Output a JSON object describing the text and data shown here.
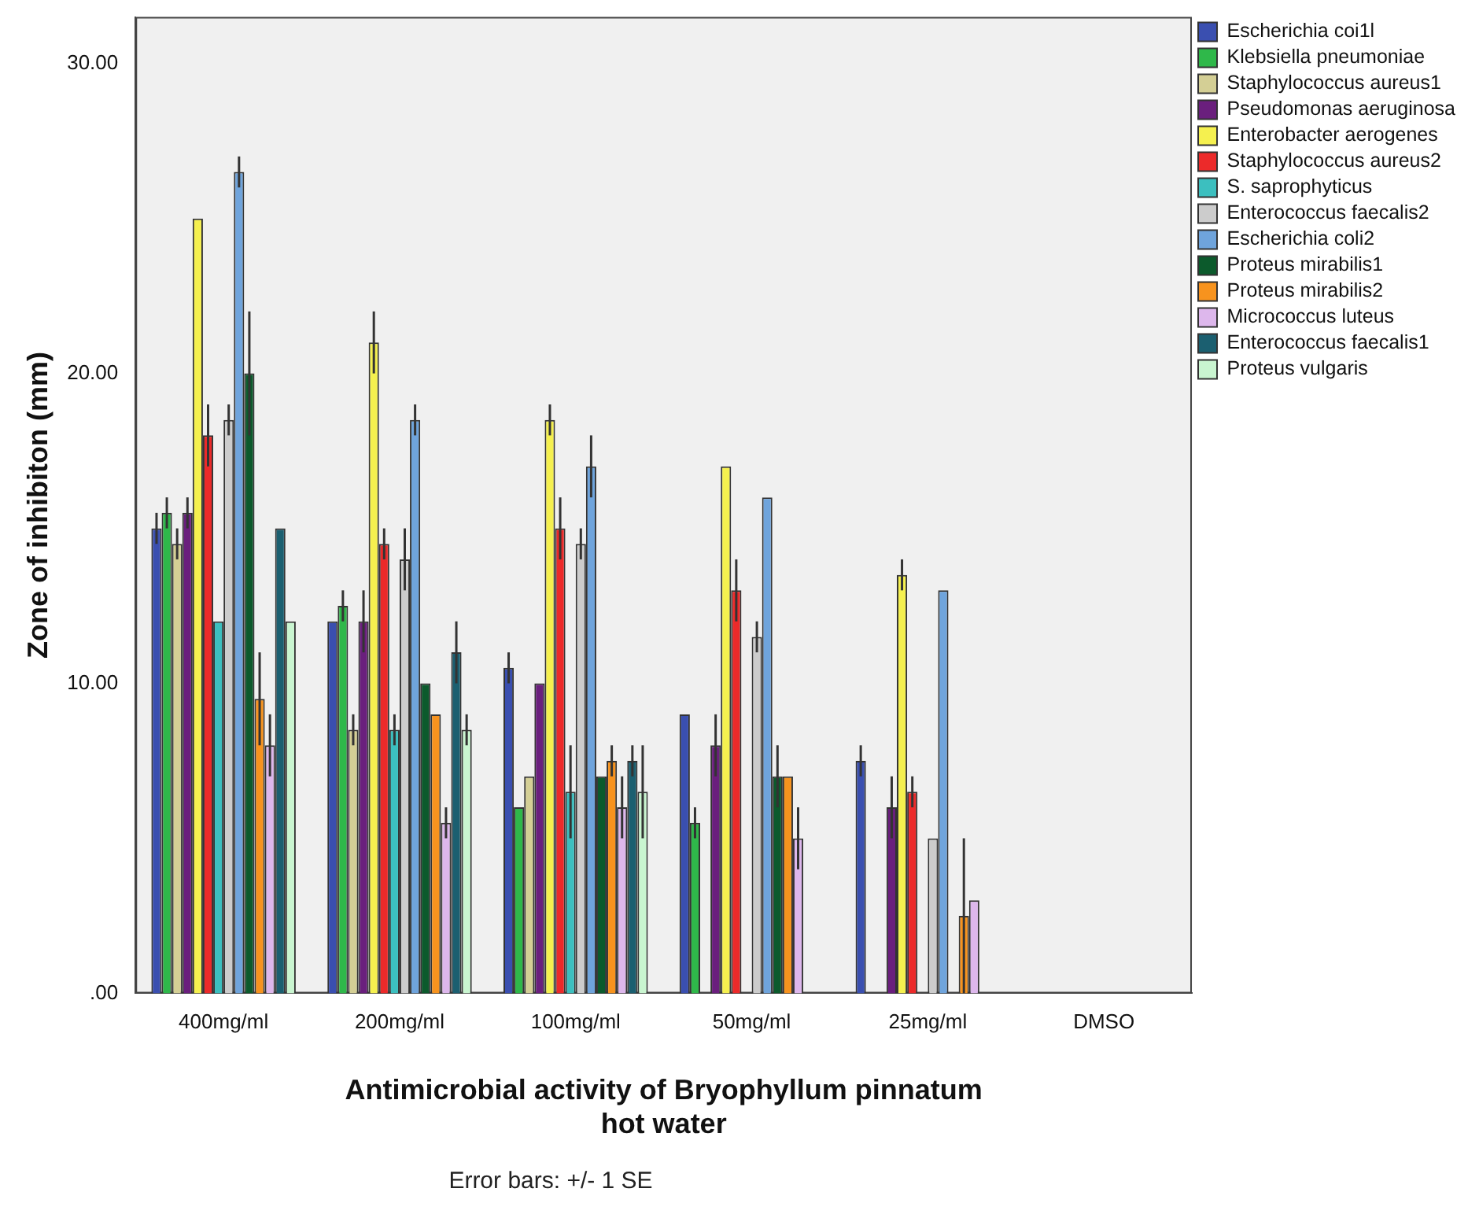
{
  "chart_data": {
    "type": "bar",
    "xlabel": "Antimicrobial activity of Bryophyllum pinnatum\nhot water",
    "ylabel": "Zone of inhibiton (mm)",
    "categories": [
      "400mg/ml",
      "200mg/ml",
      "100mg/ml",
      "50mg/ml",
      "25mg/ml",
      "DMSO"
    ],
    "ylim": [
      0,
      31.5
    ],
    "yticks": [
      {
        "value": 0,
        "label": ".00"
      },
      {
        "value": 10,
        "label": "10.00"
      },
      {
        "value": 20,
        "label": "20.00"
      },
      {
        "value": 30,
        "label": "30.00"
      }
    ],
    "grid": false,
    "legend": "right",
    "annotations": [
      "Error bars: +/- 1 SE"
    ],
    "series": [
      {
        "name": "Escherichia coi1l",
        "color": "#3a4fb0",
        "values": [
          15,
          12,
          10.5,
          9,
          7.5,
          0
        ],
        "errors": [
          0.5,
          null,
          0.5,
          null,
          0.5,
          null
        ]
      },
      {
        "name": "Klebsiella pneumoniae",
        "color": "#2fb84a",
        "values": [
          15.5,
          12.5,
          6,
          5.5,
          0,
          0
        ],
        "errors": [
          0.5,
          0.5,
          null,
          0.5,
          null,
          null
        ]
      },
      {
        "name": "Staphylococcus aureus1",
        "color": "#d4cf95",
        "values": [
          14.5,
          8.5,
          7,
          0,
          0,
          0
        ],
        "errors": [
          0.5,
          0.5,
          null,
          null,
          null,
          null
        ]
      },
      {
        "name": "Pseudomonas aeruginosa",
        "color": "#6a1f7d",
        "values": [
          15.5,
          12,
          10,
          8,
          6,
          0
        ],
        "errors": [
          0.5,
          1,
          null,
          1,
          1,
          null
        ]
      },
      {
        "name": "Enterobacter aerogenes",
        "color": "#f5f04f",
        "values": [
          25,
          21,
          18.5,
          17,
          13.5,
          0
        ],
        "errors": [
          null,
          1,
          0.5,
          null,
          0.5,
          null
        ]
      },
      {
        "name": "Staphylococcus aureus2",
        "color": "#ec2a2a",
        "values": [
          18,
          14.5,
          15,
          13,
          6.5,
          0
        ],
        "errors": [
          1,
          0.5,
          1,
          1,
          0.5,
          null
        ]
      },
      {
        "name": "S. saprophyticus",
        "color": "#3cbfbf",
        "values": [
          12,
          8.5,
          6.5,
          0,
          0,
          0
        ],
        "errors": [
          null,
          0.5,
          1.5,
          null,
          null,
          null
        ]
      },
      {
        "name": "Enterococcus faecalis2",
        "color": "#cccccc",
        "values": [
          18.5,
          14,
          14.5,
          11.5,
          5,
          0
        ],
        "errors": [
          0.5,
          1,
          0.5,
          0.5,
          null,
          null
        ]
      },
      {
        "name": "Escherichia coli2",
        "color": "#6fa4dc",
        "values": [
          26.5,
          18.5,
          17,
          16,
          13,
          0
        ],
        "errors": [
          0.5,
          0.5,
          1,
          null,
          null,
          null
        ]
      },
      {
        "name": "Proteus mirabilis1",
        "color": "#0c5a2c",
        "values": [
          20,
          10,
          7,
          7,
          0,
          0
        ],
        "errors": [
          2,
          null,
          null,
          1,
          null,
          null
        ]
      },
      {
        "name": "Proteus mirabilis2",
        "color": "#f7931e",
        "values": [
          9.5,
          9,
          7.5,
          7,
          2.5,
          0
        ],
        "errors": [
          1.5,
          null,
          0.5,
          null,
          2.5,
          null
        ]
      },
      {
        "name": "Micrococcus luteus",
        "color": "#ddb7ec",
        "values": [
          8,
          5.5,
          6,
          5,
          3,
          0
        ],
        "errors": [
          1,
          0.5,
          1,
          1,
          null,
          null
        ]
      },
      {
        "name": "Enterococcus faecalis1",
        "color": "#1b5f70",
        "values": [
          15,
          11,
          7.5,
          0,
          0,
          0
        ],
        "errors": [
          null,
          1,
          0.5,
          null,
          null,
          null
        ]
      },
      {
        "name": "Proteus vulgaris",
        "color": "#c9f5d0",
        "values": [
          12,
          8.5,
          6.5,
          0,
          0,
          0
        ],
        "errors": [
          null,
          0.5,
          1.5,
          null,
          null,
          null
        ]
      }
    ]
  }
}
